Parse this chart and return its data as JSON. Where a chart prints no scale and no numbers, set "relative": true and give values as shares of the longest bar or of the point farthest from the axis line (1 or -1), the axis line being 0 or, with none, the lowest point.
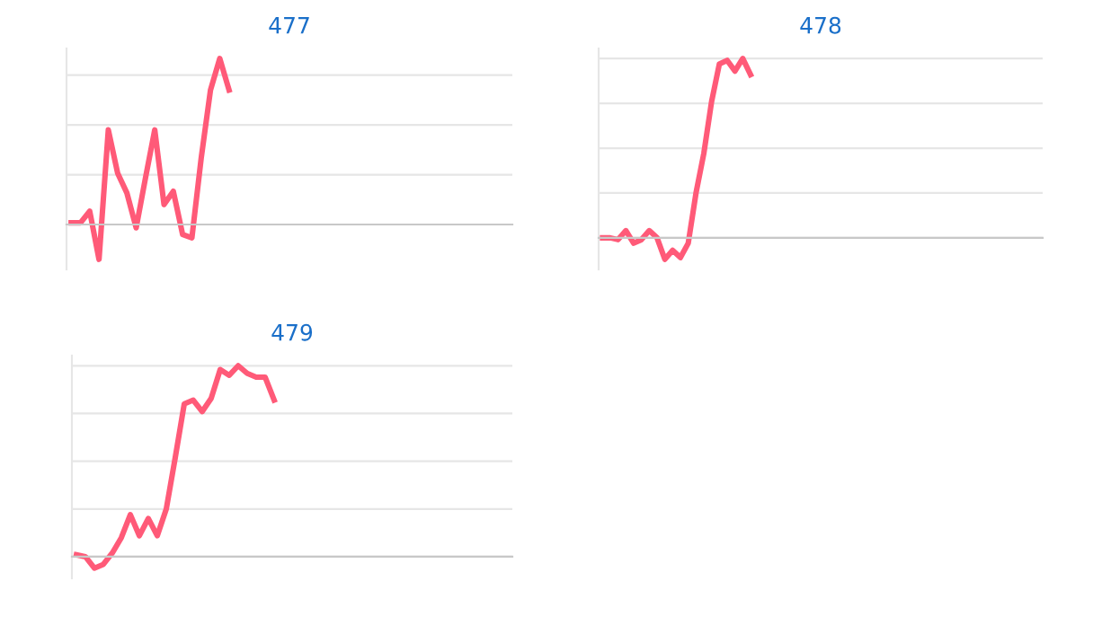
{
  "chart_data": [
    {
      "type": "line",
      "title": "477",
      "relative": true,
      "grid": "y",
      "legend": false,
      "marker": "none",
      "line_style": "solid",
      "categories": [
        null,
        null,
        null,
        null,
        null,
        null,
        null,
        null,
        null,
        null,
        null,
        null,
        null,
        null,
        null,
        null,
        null,
        null,
        null,
        null,
        null,
        null,
        null,
        null,
        null,
        null,
        null,
        null,
        null,
        null,
        null,
        null,
        null,
        null,
        null,
        null,
        null,
        null,
        null,
        null,
        null,
        null,
        null,
        null,
        null,
        null,
        null,
        null
      ],
      "series": [
        {
          "color": "#ff5a78",
          "values": [
            0.01,
            0.01,
            0.08,
            -0.21,
            0.57,
            0.31,
            0.19,
            -0.02,
            0.28,
            0.57,
            0.12,
            0.2,
            -0.06,
            -0.08,
            0.4,
            0.81,
            1,
            0.81,
            null,
            null,
            null,
            null,
            null,
            null,
            null,
            null,
            null,
            null,
            null,
            null,
            null,
            null,
            null,
            null,
            null,
            null,
            null,
            null,
            null,
            null,
            null,
            null,
            null,
            null,
            null,
            null,
            null,
            null
          ]
        }
      ]
    },
    {
      "type": "line",
      "title": "478",
      "relative": true,
      "grid": "y",
      "legend": false,
      "marker": "none",
      "line_style": "solid",
      "categories": [
        null,
        null,
        null,
        null,
        null,
        null,
        null,
        null,
        null,
        null,
        null,
        null,
        null,
        null,
        null,
        null,
        null,
        null,
        null,
        null,
        null,
        null,
        null,
        null,
        null,
        null,
        null,
        null,
        null,
        null,
        null,
        null,
        null,
        null,
        null,
        null,
        null,
        null,
        null,
        null,
        null,
        null,
        null,
        null,
        null,
        null,
        null,
        null,
        null,
        null,
        null,
        null,
        null,
        null,
        null,
        null,
        null
      ],
      "series": [
        {
          "color": "#ff5a78",
          "values": [
            0.0,
            0.0,
            -0.01,
            0.04,
            -0.03,
            -0.01,
            0.04,
            0.0,
            -0.12,
            -0.07,
            -0.11,
            -0.03,
            0.25,
            0.47,
            0.76,
            0.97,
            0.99,
            0.93,
            1,
            0.91,
            null,
            null,
            null,
            null,
            null,
            null,
            null,
            null,
            null,
            null,
            null,
            null,
            null,
            null,
            null,
            null,
            null,
            null,
            null,
            null,
            null,
            null,
            null,
            null,
            null,
            null,
            null,
            null,
            null,
            null,
            null,
            null,
            null,
            null,
            null,
            null,
            null
          ]
        }
      ]
    },
    {
      "type": "line",
      "title": "479",
      "relative": true,
      "grid": "y",
      "legend": false,
      "marker": "none",
      "line_style": "solid",
      "categories": [
        null,
        null,
        null,
        null,
        null,
        null,
        null,
        null,
        null,
        null,
        null,
        null,
        null,
        null,
        null,
        null,
        null,
        null,
        null,
        null,
        null,
        null,
        null,
        null,
        null,
        null,
        null,
        null,
        null,
        null,
        null,
        null,
        null,
        null,
        null,
        null,
        null,
        null,
        null,
        null,
        null,
        null,
        null,
        null,
        null,
        null,
        null,
        null,
        null
      ],
      "series": [
        {
          "color": "#ff5a78",
          "values": [
            0.01,
            0.0,
            -0.06,
            -0.04,
            0.02,
            0.1,
            0.22,
            0.11,
            0.2,
            0.11,
            0.25,
            0.52,
            0.8,
            0.82,
            0.76,
            0.83,
            0.98,
            0.95,
            1,
            0.96,
            0.94,
            0.94,
            0.82,
            null,
            null,
            null,
            null,
            null,
            null,
            null,
            null,
            null,
            null,
            null,
            null,
            null,
            null,
            null,
            null,
            null,
            null,
            null,
            null,
            null,
            null,
            null,
            null,
            null,
            null
          ]
        }
      ]
    }
  ]
}
